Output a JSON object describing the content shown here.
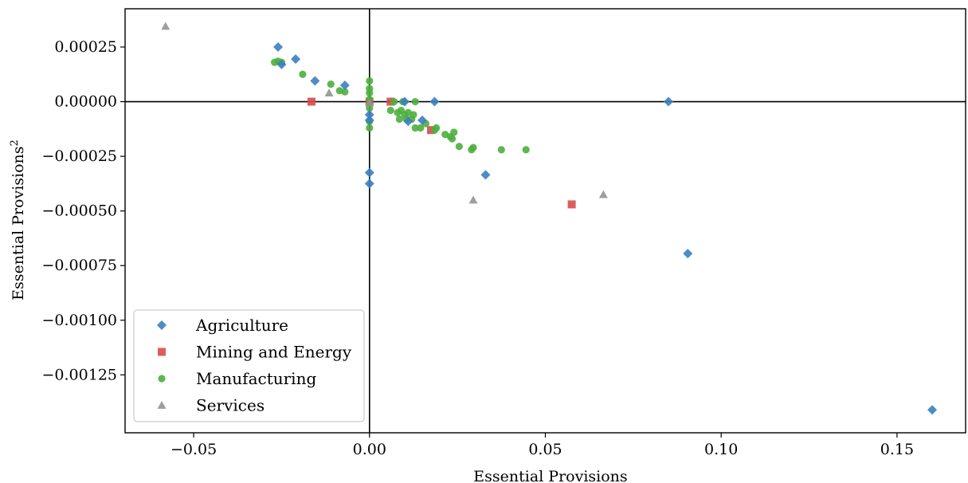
{
  "chart_data": {
    "type": "scatter",
    "title": "",
    "xlabel": "Essential Provisions",
    "ylabel": "Essential Provisions",
    "ylabel_superscript": "2",
    "xlim": [
      -0.0695,
      0.1695
    ],
    "ylim": [
      -0.001515,
      0.000425
    ],
    "xticks": [
      -0.05,
      0.0,
      0.05,
      0.1,
      0.15
    ],
    "xtick_labels": [
      "−0.05",
      "0.00",
      "0.05",
      "0.10",
      "0.15"
    ],
    "yticks": [
      0.00025,
      0.0,
      -0.00025,
      -0.0005,
      -0.00075,
      -0.001,
      -0.00125
    ],
    "ytick_labels": [
      "0.00025",
      "0.00000",
      "−0.00025",
      "−0.00050",
      "−0.00075",
      "−0.00100",
      "−0.00125"
    ],
    "reference_lines": {
      "x": 0,
      "y": 0
    },
    "grid": false,
    "legend_position": "lower-left",
    "series": [
      {
        "name": "Agriculture",
        "marker": "diamond",
        "color": "#3a80c0",
        "points": [
          [
            -0.026,
            0.00025
          ],
          [
            -0.025,
            0.00017
          ],
          [
            -0.021,
            0.000195
          ],
          [
            -0.0155,
            9.5e-05
          ],
          [
            -0.007,
            7.5e-05
          ],
          [
            0.0,
            -6e-05
          ],
          [
            0.0,
            -8.5e-05
          ],
          [
            0.0,
            -0.000325
          ],
          [
            0.0,
            -0.000375
          ],
          [
            0.01,
            0.0
          ],
          [
            0.011,
            -9e-05
          ],
          [
            0.015,
            -8.5e-05
          ],
          [
            0.0185,
            0.0
          ],
          [
            0.033,
            -0.000335
          ],
          [
            0.085,
            0.0
          ],
          [
            0.0905,
            -0.000695
          ],
          [
            0.16,
            -0.00141
          ]
        ]
      },
      {
        "name": "Mining and Energy",
        "marker": "square",
        "color": "#d94a4a",
        "points": [
          [
            -0.0165,
            0.0
          ],
          [
            0.0,
            0.0
          ],
          [
            0.006,
            0.0
          ],
          [
            0.0175,
            -0.00013
          ],
          [
            0.0575,
            -0.00047
          ]
        ]
      },
      {
        "name": "Manufacturing",
        "marker": "circle",
        "color": "#4caf3e",
        "points": [
          [
            -0.027,
            0.00018
          ],
          [
            -0.026,
            0.000185
          ],
          [
            -0.025,
            0.00018
          ],
          [
            -0.019,
            0.000125
          ],
          [
            -0.011,
            8e-05
          ],
          [
            -0.0085,
            5e-05
          ],
          [
            -0.007,
            4.5e-05
          ],
          [
            0.0,
            9.5e-05
          ],
          [
            0.0,
            6e-05
          ],
          [
            0.0,
            4e-05
          ],
          [
            0.0,
            1e-05
          ],
          [
            0.0,
            -3e-05
          ],
          [
            0.0,
            -9e-05
          ],
          [
            0.0,
            -0.00012
          ],
          [
            0.006,
            -4e-05
          ],
          [
            0.007,
            0.0
          ],
          [
            0.008,
            -5e-05
          ],
          [
            0.0085,
            -8e-05
          ],
          [
            0.009,
            -4e-05
          ],
          [
            0.0095,
            0.0
          ],
          [
            0.01,
            -6e-05
          ],
          [
            0.0105,
            -8e-05
          ],
          [
            0.011,
            -5e-05
          ],
          [
            0.012,
            -8e-05
          ],
          [
            0.0125,
            -6e-05
          ],
          [
            0.013,
            0.0
          ],
          [
            0.013,
            -0.00012
          ],
          [
            0.0145,
            -0.00012
          ],
          [
            0.016,
            -0.0001
          ],
          [
            0.0185,
            -0.00013
          ],
          [
            0.019,
            -0.00012
          ],
          [
            0.0215,
            -0.00015
          ],
          [
            0.023,
            -0.00016
          ],
          [
            0.0235,
            -0.00017
          ],
          [
            0.024,
            -0.00014
          ],
          [
            0.0255,
            -0.000205
          ],
          [
            0.029,
            -0.00022
          ],
          [
            0.0295,
            -0.00021
          ],
          [
            0.0375,
            -0.00022
          ],
          [
            0.0445,
            -0.00022
          ]
        ]
      },
      {
        "name": "Services",
        "marker": "triangle",
        "color": "#939393",
        "points": [
          [
            -0.058,
            0.000345
          ],
          [
            -0.0115,
            4e-05
          ],
          [
            0.0,
            -5e-06
          ],
          [
            0.0295,
            -0.00045
          ],
          [
            0.0665,
            -0.000425
          ]
        ]
      }
    ]
  }
}
